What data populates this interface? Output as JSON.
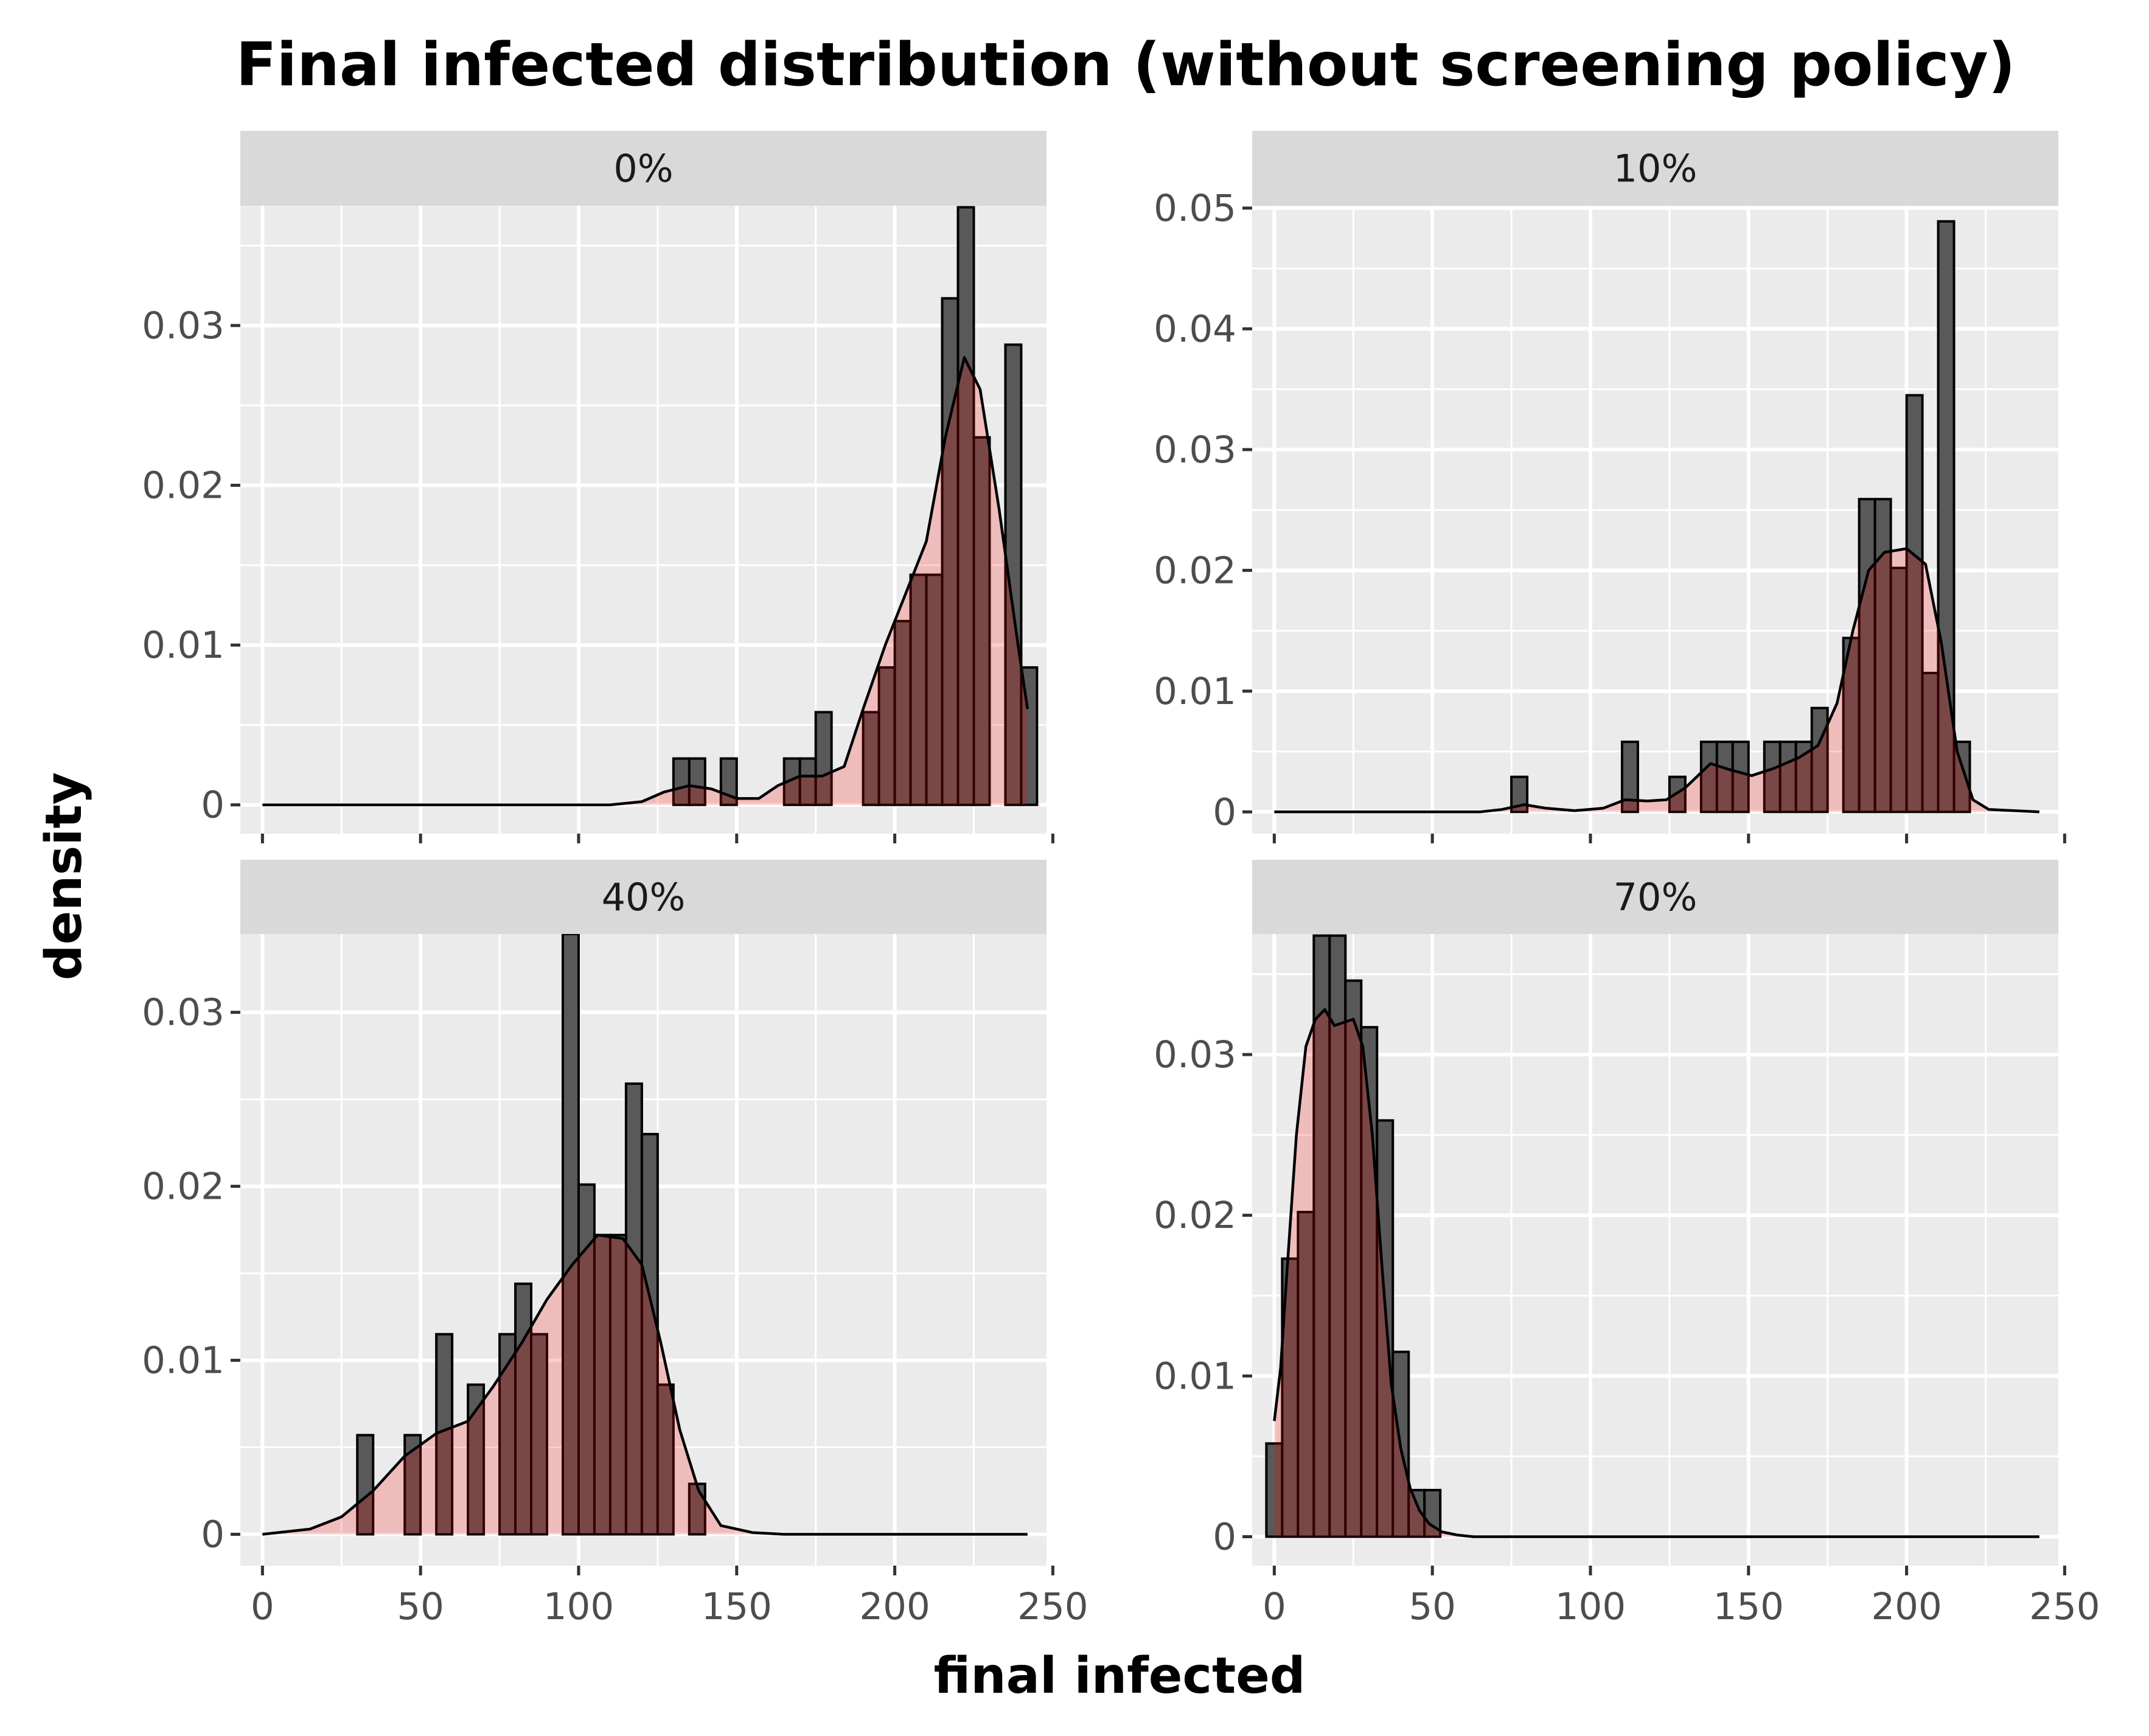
{
  "chart_data": {
    "type": "histogram",
    "title": "Final infected distribution (without screening policy)",
    "xlabel": "final infected",
    "ylabel": "density",
    "xlim": [
      -7,
      248
    ],
    "x_ticks": [
      0,
      50,
      100,
      150,
      200,
      250
    ],
    "bin_width": 5,
    "grid": true,
    "legend": "none",
    "colors": {
      "panel_bg": "#ebebeb",
      "strip_bg": "#d9d9d9",
      "grid": "#ffffff",
      "hist_fill": "#595959",
      "hist_edge": "#000000",
      "density_fill": "#f4b6b6",
      "density_line": "#000000",
      "overlap": "#6b1f23"
    },
    "facets": [
      {
        "label": "0%",
        "ylim": [
          -0.0018,
          0.0375
        ],
        "y_ticks": [
          0,
          0.01,
          0.02,
          0.03
        ],
        "y_tick_labels": [
          "0",
          "0.01",
          "0.02",
          "0.03"
        ],
        "bins": [
          [
            130,
            0.0029
          ],
          [
            135,
            0.0029
          ],
          [
            145,
            0.0029
          ],
          [
            165,
            0.0029
          ],
          [
            170,
            0.0029
          ],
          [
            175,
            0.0058
          ],
          [
            190,
            0.0058
          ],
          [
            195,
            0.0086
          ],
          [
            200,
            0.0115
          ],
          [
            205,
            0.0144
          ],
          [
            210,
            0.0144
          ],
          [
            215,
            0.0317
          ],
          [
            220,
            0.0374
          ],
          [
            225,
            0.023
          ],
          [
            235,
            0.0288
          ],
          [
            240,
            0.0086
          ]
        ],
        "density": [
          [
            0,
            0
          ],
          [
            110,
            0
          ],
          [
            120,
            0.0002
          ],
          [
            127,
            0.0008
          ],
          [
            135,
            0.0012
          ],
          [
            142,
            0.001
          ],
          [
            150,
            0.0004
          ],
          [
            157,
            0.0004
          ],
          [
            163,
            0.0012
          ],
          [
            170,
            0.0018
          ],
          [
            177,
            0.0018
          ],
          [
            184,
            0.0024
          ],
          [
            190,
            0.006
          ],
          [
            197,
            0.01
          ],
          [
            203,
            0.013
          ],
          [
            210,
            0.0165
          ],
          [
            216,
            0.023
          ],
          [
            222,
            0.028
          ],
          [
            227,
            0.026
          ],
          [
            233,
            0.0185
          ],
          [
            239,
            0.01
          ],
          [
            242,
            0.006
          ]
        ]
      },
      {
        "label": "10%",
        "ylim": [
          -0.0018,
          0.0502
        ],
        "y_ticks": [
          0,
          0.01,
          0.02,
          0.03,
          0.04,
          0.05
        ],
        "y_tick_labels": [
          "0",
          "0.01",
          "0.02",
          "0.03",
          "0.04",
          "0.05"
        ],
        "bins": [
          [
            75,
            0.0029
          ],
          [
            110,
            0.0058
          ],
          [
            125,
            0.0029
          ],
          [
            135,
            0.0058
          ],
          [
            140,
            0.0058
          ],
          [
            145,
            0.0058
          ],
          [
            155,
            0.0058
          ],
          [
            160,
            0.0058
          ],
          [
            165,
            0.0058
          ],
          [
            170,
            0.0086
          ],
          [
            180,
            0.0144
          ],
          [
            185,
            0.0259
          ],
          [
            190,
            0.0259
          ],
          [
            195,
            0.0202
          ],
          [
            200,
            0.0345
          ],
          [
            205,
            0.0115
          ],
          [
            210,
            0.0489
          ],
          [
            215,
            0.0058
          ]
        ],
        "density": [
          [
            0,
            0
          ],
          [
            65,
            0
          ],
          [
            72,
            0.0002
          ],
          [
            79,
            0.0006
          ],
          [
            86,
            0.0003
          ],
          [
            95,
            0.0001
          ],
          [
            104,
            0.0003
          ],
          [
            111,
            0.001
          ],
          [
            118,
            0.0009
          ],
          [
            124,
            0.001
          ],
          [
            130,
            0.002
          ],
          [
            138,
            0.004
          ],
          [
            144,
            0.0035
          ],
          [
            151,
            0.003
          ],
          [
            158,
            0.0036
          ],
          [
            166,
            0.0045
          ],
          [
            172,
            0.0055
          ],
          [
            178,
            0.009
          ],
          [
            183,
            0.015
          ],
          [
            188,
            0.02
          ],
          [
            193,
            0.0215
          ],
          [
            200,
            0.0218
          ],
          [
            206,
            0.0205
          ],
          [
            211,
            0.014
          ],
          [
            216,
            0.005
          ],
          [
            221,
            0.001
          ],
          [
            226,
            0.0002
          ],
          [
            242,
            0
          ]
        ]
      },
      {
        "label": "40%",
        "ylim": [
          -0.0018,
          0.0345
        ],
        "y_ticks": [
          0,
          0.01,
          0.02,
          0.03
        ],
        "y_tick_labels": [
          "0",
          "0.01",
          "0.02",
          "0.03"
        ],
        "bins": [
          [
            30,
            0.0057
          ],
          [
            45,
            0.0057
          ],
          [
            55,
            0.0115
          ],
          [
            65,
            0.0086
          ],
          [
            75,
            0.0115
          ],
          [
            80,
            0.0144
          ],
          [
            85,
            0.0115
          ],
          [
            95,
            0.0345
          ],
          [
            100,
            0.0201
          ],
          [
            105,
            0.0172
          ],
          [
            110,
            0.0172
          ],
          [
            115,
            0.0259
          ],
          [
            120,
            0.023
          ],
          [
            125,
            0.0086
          ],
          [
            135,
            0.0029
          ]
        ],
        "density": [
          [
            0,
            0
          ],
          [
            15,
            0.0003
          ],
          [
            25,
            0.001
          ],
          [
            35,
            0.0025
          ],
          [
            45,
            0.0045
          ],
          [
            55,
            0.0058
          ],
          [
            65,
            0.0065
          ],
          [
            73,
            0.0085
          ],
          [
            82,
            0.011
          ],
          [
            90,
            0.0135
          ],
          [
            98,
            0.0155
          ],
          [
            106,
            0.0172
          ],
          [
            114,
            0.017
          ],
          [
            120,
            0.0155
          ],
          [
            126,
            0.011
          ],
          [
            132,
            0.006
          ],
          [
            138,
            0.0025
          ],
          [
            145,
            0.0005
          ],
          [
            155,
            0.0001
          ],
          [
            165,
            0
          ],
          [
            242,
            0
          ]
        ]
      },
      {
        "label": "70%",
        "ylim": [
          -0.0018,
          0.0375
        ],
        "y_ticks": [
          0,
          0.01,
          0.02,
          0.03
        ],
        "y_tick_labels": [
          "0",
          "0.01",
          "0.02",
          "0.03"
        ],
        "bins": [
          [
            -2.5,
            0.0058
          ],
          [
            2.5,
            0.0173
          ],
          [
            7.5,
            0.0202
          ],
          [
            12.5,
            0.0374
          ],
          [
            17.5,
            0.0374
          ],
          [
            22.5,
            0.0346
          ],
          [
            27.5,
            0.0317
          ],
          [
            32.5,
            0.0259
          ],
          [
            37.5,
            0.0115
          ],
          [
            42.5,
            0.0029
          ],
          [
            47.5,
            0.0029
          ]
        ],
        "density": [
          [
            0,
            0.0072
          ],
          [
            2,
            0.0105
          ],
          [
            4,
            0.0165
          ],
          [
            7,
            0.025
          ],
          [
            10,
            0.0305
          ],
          [
            13,
            0.0322
          ],
          [
            16,
            0.0328
          ],
          [
            19,
            0.0318
          ],
          [
            22,
            0.032
          ],
          [
            25,
            0.0322
          ],
          [
            28,
            0.0305
          ],
          [
            31,
            0.025
          ],
          [
            34,
            0.017
          ],
          [
            37,
            0.0095
          ],
          [
            40,
            0.0055
          ],
          [
            43,
            0.003
          ],
          [
            46,
            0.0016
          ],
          [
            49,
            0.0008
          ],
          [
            53,
            0.0003
          ],
          [
            58,
            0.0001
          ],
          [
            63,
            0
          ],
          [
            242,
            0
          ]
        ]
      }
    ]
  }
}
